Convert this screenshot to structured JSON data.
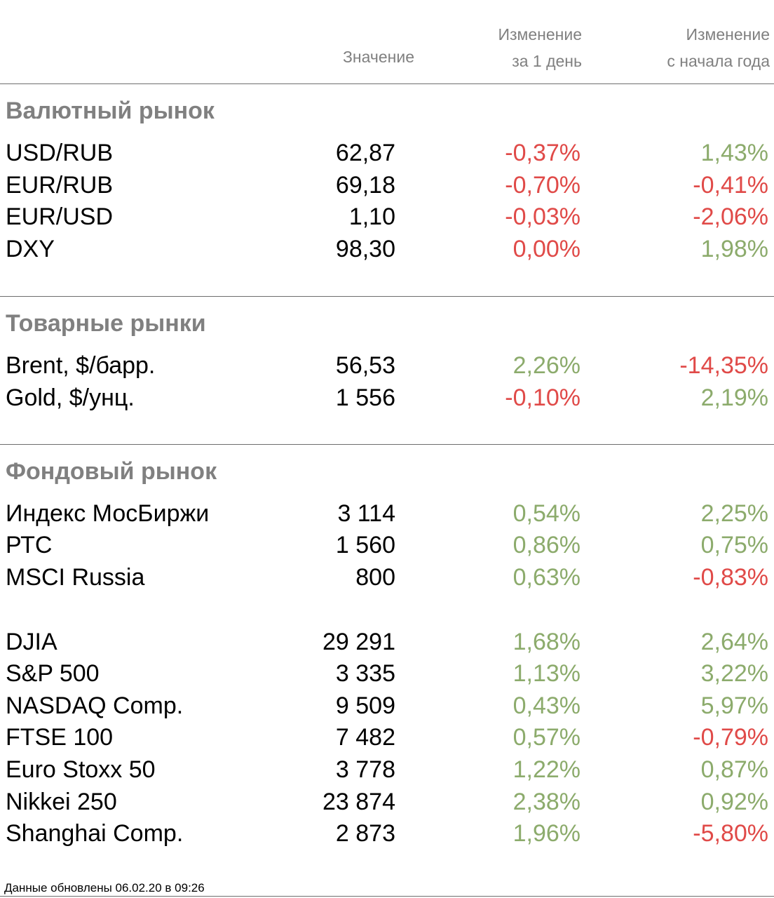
{
  "header": {
    "value": "Значение",
    "day_line1": "Изменение",
    "day_line2": "за 1 день",
    "ytd_line1": "Изменение",
    "ytd_line2": "с начала года"
  },
  "sections": [
    {
      "title": "Валютный рынок",
      "rows": [
        {
          "name": "USD/RUB",
          "value": "62,87",
          "day": "-0,37%",
          "ytd": "1,43%"
        },
        {
          "name": "EUR/RUB",
          "value": "69,18",
          "day": "-0,70%",
          "ytd": "-0,41%"
        },
        {
          "name": "EUR/USD",
          "value": "1,10",
          "day": "-0,03%",
          "ytd": "-2,06%"
        },
        {
          "name": "DXY",
          "value": "98,30",
          "day": "0,00%",
          "ytd": "1,98%"
        }
      ]
    },
    {
      "title": "Товарные рынки",
      "rows": [
        {
          "name": "Brent, $/барр.",
          "value": "56,53",
          "day": "2,26%",
          "ytd": "-14,35%"
        },
        {
          "name": "Gold, $/унц.",
          "value": "1 556",
          "day": "-0,10%",
          "ytd": "2,19%"
        }
      ]
    },
    {
      "title": "Фондовый рынок",
      "rows": [
        {
          "name": "Индекс МосБиржи",
          "value": "3 114",
          "day": "0,54%",
          "ytd": "2,25%"
        },
        {
          "name": "РТС",
          "value": "1 560",
          "day": "0,86%",
          "ytd": "0,75%"
        },
        {
          "name": "MSCI Russia",
          "value": "800",
          "day": "0,63%",
          "ytd": "-0,83%"
        },
        {
          "name": "DJIA",
          "value": "29 291",
          "day": "1,68%",
          "ytd": "2,64%"
        },
        {
          "name": "S&P 500",
          "value": "3 335",
          "day": "1,13%",
          "ytd": "3,22%"
        },
        {
          "name": "NASDAQ Comp.",
          "value": "9 509",
          "day": "0,43%",
          "ytd": "5,97%"
        },
        {
          "name": "FTSE 100",
          "value": "7 482",
          "day": "0,57%",
          "ytd": "-0,79%"
        },
        {
          "name": "Euro Stoxx 50",
          "value": "3 778",
          "day": "1,22%",
          "ytd": "0,87%"
        },
        {
          "name": "Nikkei 250",
          "value": "23 874",
          "day": "2,38%",
          "ytd": "0,92%"
        },
        {
          "name": "Shanghai Comp.",
          "value": "2 873",
          "day": "1,96%",
          "ytd": "-5,80%"
        }
      ]
    }
  ],
  "colors": {
    "negative": "#e04a48",
    "positive": "#8cab6c",
    "header": "#808080"
  },
  "footer": "Данные обновлены 06.02.20 в 09:26"
}
